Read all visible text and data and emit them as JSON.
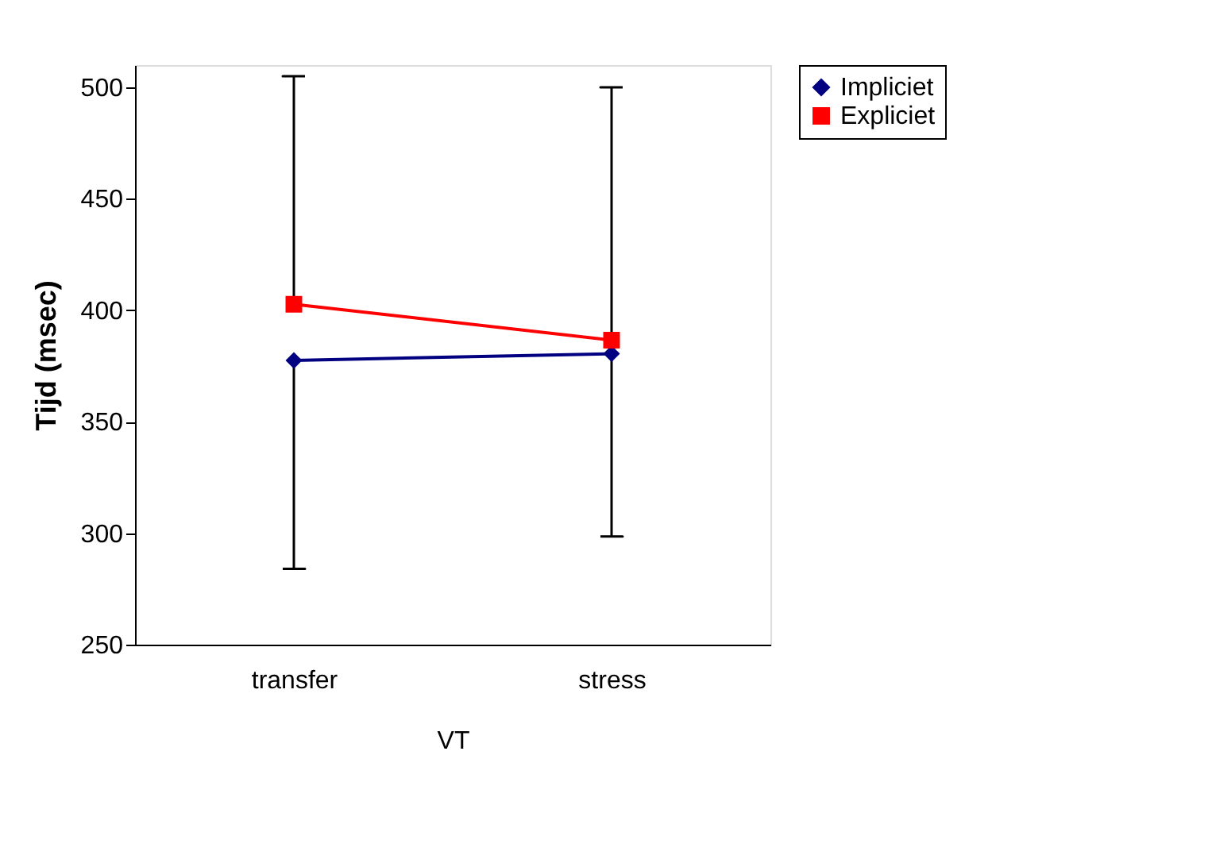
{
  "chart_data": {
    "type": "line",
    "xlabel": "VT",
    "ylabel": "Tijd (msec)",
    "categories": [
      "transfer",
      "stress"
    ],
    "series": [
      {
        "name": "Impliciet",
        "color": "#000080",
        "marker": "diamond",
        "values": [
          377.5,
          380.5
        ],
        "errors": [
          [
            284,
            377.5
          ],
          [
            298.5,
            380.5
          ]
        ]
      },
      {
        "name": "Expliciet",
        "color": "#ff0000",
        "marker": "square",
        "values": [
          402.7,
          386.6
        ],
        "errors": [
          [
            402.7,
            505
          ],
          [
            386.6,
            500
          ]
        ]
      }
    ],
    "ylim": [
      250,
      510
    ],
    "yticks": [
      250,
      300,
      350,
      400,
      450,
      500
    ],
    "grid": false,
    "legend": "right"
  }
}
